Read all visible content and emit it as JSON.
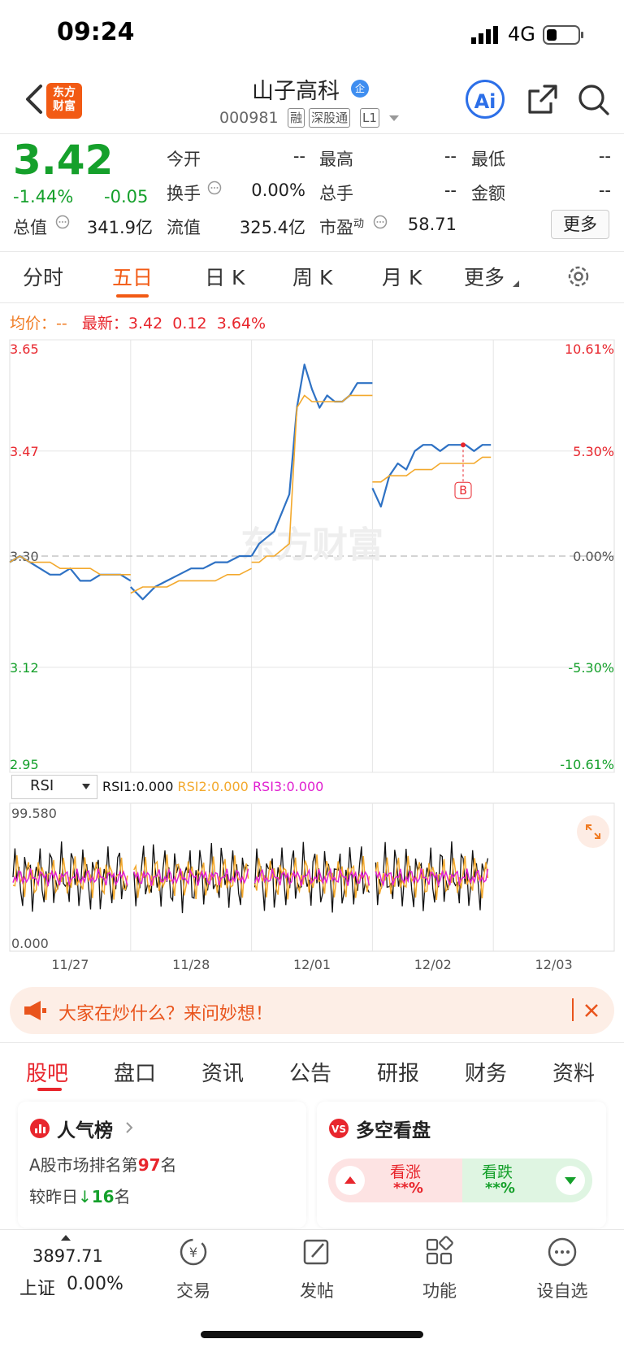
{
  "status_bar": {
    "time": "09:24",
    "network": "4G"
  },
  "header": {
    "logo_line1": "东方",
    "logo_line2": "财富",
    "stock_name": "山子高科",
    "badge": "企",
    "stock_code": "000981",
    "tags": [
      "融",
      "深股通",
      "L1"
    ],
    "ai_label": "Ai"
  },
  "quote": {
    "price": "3.42",
    "change_pct": "-1.44%",
    "change": "-0.05",
    "fields": {
      "open_label": "今开",
      "open": "--",
      "high_label": "最高",
      "high": "--",
      "low_label": "最低",
      "low": "--",
      "turnover_label": "换手",
      "turnover": "0.00%",
      "volume_label": "总手",
      "volume": "--",
      "amount_label": "金额",
      "amount": "--",
      "mktcap_label": "总值",
      "mktcap": "341.9亿",
      "float_label": "流值",
      "float": "325.4亿",
      "pe_label": "市盈",
      "pe_sup": "动",
      "pe": "58.71"
    },
    "more_label": "更多"
  },
  "chart_tabs": [
    "分时",
    "五日",
    "日 K",
    "周 K",
    "月 K",
    "更多"
  ],
  "active_chart_tab": "五日",
  "chart_info": {
    "avg_label": "均价：",
    "avg_value": "--",
    "latest_label": "最新：",
    "latest_price": "3.42",
    "latest_change": "0.12",
    "latest_pct": "3.64%"
  },
  "chart_data": {
    "type": "line",
    "days": [
      "11/27",
      "11/28",
      "12/01",
      "12/02",
      "12/03"
    ],
    "y_labels_left": [
      "3.65",
      "3.47",
      "3.30",
      "3.12",
      "2.95"
    ],
    "y_labels_right": [
      "10.61%",
      "5.30%",
      "0.00%",
      "-5.30%",
      "-10.61%"
    ],
    "ylim": [
      2.95,
      3.65
    ],
    "prev_close": 3.3,
    "series": [
      {
        "color": "#2f72c4",
        "values": [
          3.29,
          3.3,
          3.29,
          3.28,
          3.27,
          3.27,
          3.28,
          3.26,
          3.26,
          3.27,
          3.27,
          3.27,
          3.26,
          3.25,
          3.23,
          3.25,
          3.26,
          3.27,
          3.28,
          3.28,
          3.29,
          3.29,
          3.3,
          3.3,
          3.3,
          3.32,
          3.33,
          3.34,
          3.37,
          3.4,
          3.54,
          3.61,
          3.57,
          3.54,
          3.56,
          3.55,
          3.55,
          3.56,
          3.58,
          3.58,
          3.58,
          3.41,
          3.38,
          3.43,
          3.45,
          3.44,
          3.47,
          3.48,
          3.48,
          3.47,
          3.48,
          3.48,
          3.48,
          3.47,
          3.48,
          3.48
        ]
      },
      {
        "color": "#f3a92d",
        "values": [
          3.29,
          3.3,
          3.29,
          3.29,
          3.29,
          3.28,
          3.28,
          3.28,
          3.28,
          3.27,
          3.27,
          3.27,
          3.27,
          3.24,
          3.25,
          3.25,
          3.25,
          3.26,
          3.26,
          3.26,
          3.26,
          3.27,
          3.27,
          3.28,
          3.29,
          3.29,
          3.3,
          3.3,
          3.31,
          3.32,
          3.54,
          3.56,
          3.55,
          3.55,
          3.55,
          3.55,
          3.55,
          3.56,
          3.56,
          3.56,
          3.56,
          3.42,
          3.42,
          3.43,
          3.43,
          3.43,
          3.44,
          3.44,
          3.44,
          3.45,
          3.45,
          3.45,
          3.45,
          3.45,
          3.46,
          3.46
        ]
      }
    ],
    "trade_marker": "B",
    "rsi": {
      "select_label": "RSI",
      "rsi1": "RSI1:0.000",
      "rsi2": "RSI2:0.000",
      "rsi3": "RSI3:0.000",
      "max_label": "99.580",
      "min_label": "0.000",
      "colors": [
        "#111111",
        "#f3a92d",
        "#e020d0"
      ]
    },
    "watermark": "东方财富"
  },
  "banner": {
    "text": "大家在炒什么？来问妙想！"
  },
  "bottom_tabs": [
    "股吧",
    "盘口",
    "资讯",
    "公告",
    "研报",
    "财务",
    "资料"
  ],
  "active_bottom_tab": "股吧",
  "cards": {
    "popularity": {
      "title": "人气榜",
      "rank_prefix": "A股市场排名第",
      "rank": "97",
      "rank_suffix": "名",
      "change_prefix": "较昨日",
      "change_value": "16",
      "change_suffix": "名"
    },
    "sentiment": {
      "title": "多空看盘",
      "bull_label": "看涨",
      "bull_value": "**%",
      "bear_label": "看跌",
      "bear_value": "**%"
    }
  },
  "bottom_nav": {
    "index_value": "3897.71",
    "index_name": "上证",
    "index_change": "0.00%",
    "items": [
      "交易",
      "发帖",
      "功能",
      "设自选"
    ]
  }
}
